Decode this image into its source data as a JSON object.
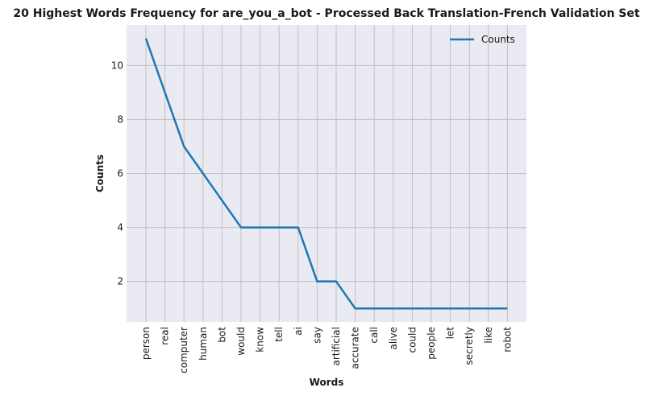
{
  "chart_data": {
    "type": "line",
    "title": "20 Highest Words Frequency for are_you_a_bot - Processed Back Translation-French Validation Set",
    "xlabel": "Words",
    "ylabel": "Counts",
    "categories": [
      "person",
      "real",
      "computer",
      "human",
      "bot",
      "would",
      "know",
      "tell",
      "ai",
      "say",
      "artificial",
      "accurate",
      "call",
      "alive",
      "could",
      "people",
      "let",
      "secretly",
      "like",
      "robot"
    ],
    "series": [
      {
        "name": "Counts",
        "values": [
          11,
          9,
          7,
          6,
          5,
          4,
          4,
          4,
          4,
          2,
          2,
          1,
          1,
          1,
          1,
          1,
          1,
          1,
          1,
          1
        ],
        "color": "#1f77b4"
      }
    ],
    "yticks": [
      2,
      4,
      6,
      8,
      10
    ],
    "ylim": [
      0.5,
      11.5
    ],
    "grid": true,
    "legend_position": "top-right",
    "background": "#eaeaf2",
    "grid_color": "#c0c0c0"
  }
}
